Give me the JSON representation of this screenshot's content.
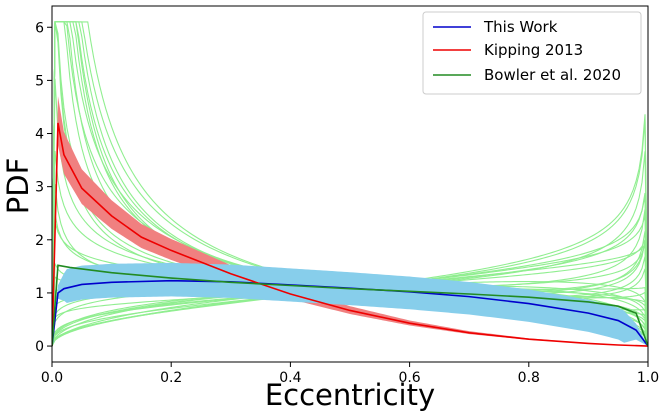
{
  "chart_data": {
    "type": "line",
    "title": "",
    "xlabel": "Eccentricity",
    "ylabel": "PDF",
    "xlim": [
      0.0,
      1.0
    ],
    "ylim": [
      -0.3,
      6.4
    ],
    "x_ticks": [
      "0.0",
      "0.2",
      "0.4",
      "0.6",
      "0.8",
      "1.0"
    ],
    "y_ticks": [
      "0",
      "1",
      "2",
      "3",
      "4",
      "5",
      "6"
    ],
    "grid": false,
    "legend_position": "top-right",
    "legend": [
      {
        "label": "This Work",
        "color": "#0000cc"
      },
      {
        "label": "Kipping 2013",
        "color": "#ee0000"
      },
      {
        "label": "Bowler et al. 2020",
        "color": "#228b22"
      }
    ],
    "colors": {
      "this_work_band": "#87ceeb",
      "kipping_band": "#f08080",
      "bowler_samples": "#90ee90"
    },
    "series": [
      {
        "name": "This Work",
        "type": "median",
        "x": [
          0.0,
          0.01,
          0.02,
          0.05,
          0.1,
          0.2,
          0.3,
          0.4,
          0.5,
          0.6,
          0.7,
          0.8,
          0.9,
          0.95,
          0.98,
          1.0
        ],
        "y": [
          0.0,
          1.0,
          1.08,
          1.16,
          1.2,
          1.23,
          1.21,
          1.15,
          1.09,
          1.02,
          0.93,
          0.8,
          0.62,
          0.48,
          0.3,
          0.0
        ]
      },
      {
        "name": "Kipping 2013",
        "type": "median",
        "x": [
          0.0,
          0.01,
          0.02,
          0.05,
          0.1,
          0.15,
          0.2,
          0.3,
          0.4,
          0.5,
          0.6,
          0.7,
          0.8,
          0.9,
          0.95,
          1.0
        ],
        "y": [
          0.0,
          4.2,
          3.6,
          2.97,
          2.45,
          2.05,
          1.8,
          1.36,
          0.98,
          0.67,
          0.43,
          0.25,
          0.13,
          0.05,
          0.02,
          0.0
        ]
      },
      {
        "name": "Bowler et al. 2020",
        "type": "median",
        "x": [
          0.0,
          0.01,
          0.03,
          0.1,
          0.2,
          0.3,
          0.4,
          0.5,
          0.6,
          0.7,
          0.8,
          0.9,
          0.95,
          0.98,
          1.0
        ],
        "y": [
          0.0,
          1.52,
          1.48,
          1.38,
          1.28,
          1.2,
          1.14,
          1.08,
          1.03,
          0.98,
          0.92,
          0.83,
          0.75,
          0.62,
          0.0
        ]
      }
    ]
  }
}
